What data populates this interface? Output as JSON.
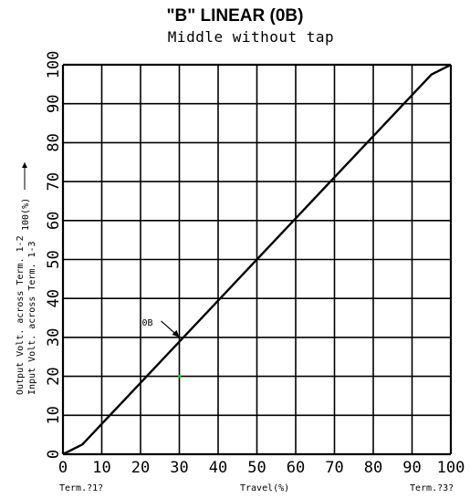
{
  "chart_data": {
    "type": "line",
    "title": "\"B\" LINEAR (0B)",
    "subtitle": "Middle without tap",
    "xlabel": "Travel(%)",
    "ylabel_lines": [
      "Output Volt. across Term. 1-2",
      "Input Volt. across Term. 1-3",
      "100(%)"
    ],
    "x_end_labels": {
      "left": "Term.?1?",
      "right": "Term.?3?"
    },
    "xlim": [
      0,
      100
    ],
    "ylim": [
      0,
      100
    ],
    "x_ticks": [
      "0",
      "10",
      "20",
      "30",
      "40",
      "50",
      "60",
      "70",
      "80",
      "90",
      "100"
    ],
    "y_ticks": [
      "0",
      "10",
      "20",
      "30",
      "40",
      "50",
      "60",
      "70",
      "80",
      "90",
      "100"
    ],
    "grid": true,
    "series": [
      {
        "name": "0B",
        "x": [
          0,
          5,
          95,
          100
        ],
        "y": [
          0,
          2.5,
          97.5,
          100
        ]
      }
    ],
    "annotation": {
      "text": "0B",
      "x": 30,
      "y": 30
    },
    "colors": {
      "line": "#000000",
      "grid": "#000000",
      "marker": "#00cc00"
    }
  }
}
